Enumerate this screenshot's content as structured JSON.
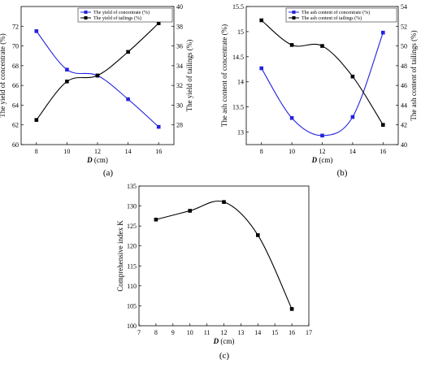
{
  "colors": {
    "concentrate": "#2323e0",
    "tailings": "#000000",
    "axis": "#000000"
  },
  "chart_data": [
    {
      "panel": "(a)",
      "type": "line",
      "x": [
        8,
        10,
        12,
        14,
        16
      ],
      "xlabel_var": "D",
      "xlabel_unit": " (cm)",
      "xlim": [
        7,
        17
      ],
      "xticks": [
        8,
        10,
        12,
        14,
        16
      ],
      "ylabel": "The yield of concentrate (%)",
      "ylim": [
        60,
        74
      ],
      "yticks": [
        60,
        62,
        64,
        66,
        68,
        70,
        72
      ],
      "y2label": "The yield of tailings (%)",
      "y2lim": [
        26,
        40
      ],
      "y2ticks": [
        28,
        30,
        32,
        34,
        36,
        38,
        40
      ],
      "legend": "top-right",
      "series": [
        {
          "name": "The yield of concentrate (%)",
          "axis": "left",
          "values": [
            71.5,
            67.6,
            67.0,
            64.6,
            61.8
          ]
        },
        {
          "name": "The yield of tailings (%)",
          "axis": "right",
          "values": [
            28.5,
            32.4,
            33.0,
            35.4,
            38.3
          ]
        }
      ]
    },
    {
      "panel": "(b)",
      "type": "line",
      "x": [
        8,
        10,
        12,
        14,
        16
      ],
      "xlabel_var": "D",
      "xlabel_unit": " (cm)",
      "xlim": [
        7,
        17
      ],
      "xticks": [
        8,
        10,
        12,
        14,
        16
      ],
      "ylabel": "The ash content of concentrate (%)",
      "ylim": [
        12.75,
        15.5
      ],
      "yticks": [
        13.0,
        13.5,
        14.0,
        14.5,
        15.0,
        15.5
      ],
      "y2label": "The ash content of tailings (%)",
      "y2lim": [
        40,
        54
      ],
      "y2ticks": [
        40,
        42,
        44,
        46,
        48,
        50,
        52,
        54
      ],
      "legend": "top-right",
      "series": [
        {
          "name": "The ash content of concentrate (%)",
          "axis": "left",
          "values": [
            14.27,
            13.28,
            12.93,
            13.3,
            14.98
          ]
        },
        {
          "name": "The ash content of tailings (%)",
          "axis": "right",
          "values": [
            52.6,
            50.1,
            50.0,
            46.9,
            42.0
          ]
        }
      ]
    },
    {
      "panel": "(c)",
      "type": "line",
      "x": [
        8,
        10,
        12,
        14,
        16
      ],
      "xlabel_var": "D",
      "xlabel_unit": " (cm)",
      "xlim": [
        7,
        17
      ],
      "xticks": [
        7,
        8,
        9,
        10,
        11,
        12,
        13,
        14,
        15,
        16,
        17
      ],
      "ylabel": "Comprehensive index K",
      "ylim": [
        100,
        135
      ],
      "yticks": [
        100,
        105,
        110,
        115,
        120,
        125,
        130,
        135
      ],
      "series": [
        {
          "name": "",
          "axis": "left",
          "values": [
            126.6,
            128.8,
            131.0,
            122.7,
            104.2
          ]
        }
      ]
    }
  ]
}
